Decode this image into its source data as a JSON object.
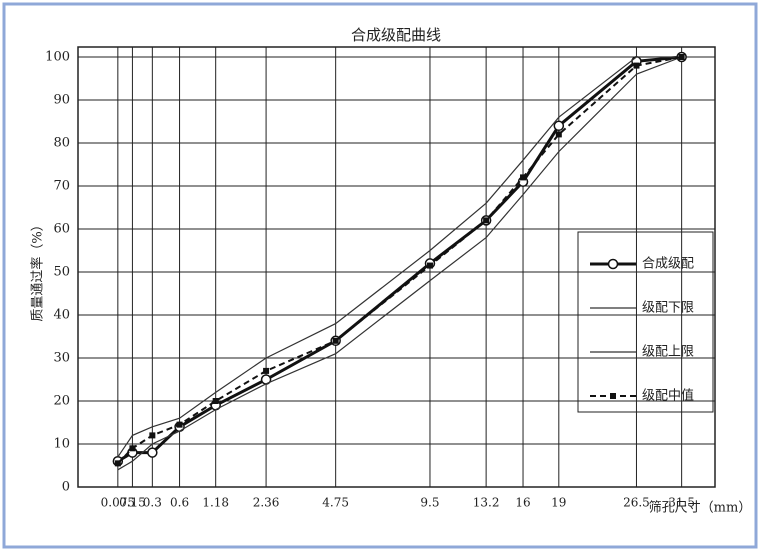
{
  "chart_data": {
    "type": "line",
    "title": "合成级配曲线",
    "x_label": "筛孔尺寸（mm）",
    "y_label": "质量通过率（%）",
    "x": [
      0.075,
      0.15,
      0.3,
      0.6,
      1.18,
      2.36,
      4.75,
      9.5,
      13.2,
      16,
      19,
      26.5,
      31.5
    ],
    "xscale": "power",
    "xscale_exponent": 0.45,
    "xlim": [
      0,
      35.5
    ],
    "xticks": [
      0.075,
      0.15,
      0.3,
      0.6,
      1.18,
      2.36,
      4.75,
      9.5,
      13.2,
      16,
      19,
      26.5,
      31.5
    ],
    "ylim": [
      0,
      100
    ],
    "yticks": [
      0,
      10,
      20,
      30,
      40,
      50,
      60,
      70,
      80,
      90,
      100
    ],
    "grid": true,
    "legend": "right",
    "series": [
      {
        "name": "合成级配",
        "color": "#111111",
        "style": "thick-circle",
        "values": [
          6,
          8,
          8,
          14,
          19,
          25,
          34,
          52,
          62,
          71,
          84,
          99,
          100
        ]
      },
      {
        "name": "级配下限",
        "color": "#333333",
        "style": "thin",
        "values": [
          4,
          6,
          10,
          13,
          18,
          24,
          31,
          48,
          58,
          68,
          78,
          96,
          100
        ]
      },
      {
        "name": "级配上限",
        "color": "#333333",
        "style": "thin",
        "values": [
          7,
          12,
          14,
          16,
          22,
          30,
          38,
          55,
          66,
          76,
          86,
          100,
          100
        ]
      },
      {
        "name": "级配中值",
        "color": "#111111",
        "style": "dashed-square",
        "values": [
          5.5,
          9,
          12,
          14.5,
          20,
          27,
          34,
          51.5,
          62,
          72,
          82,
          98,
          100
        ]
      }
    ]
  }
}
